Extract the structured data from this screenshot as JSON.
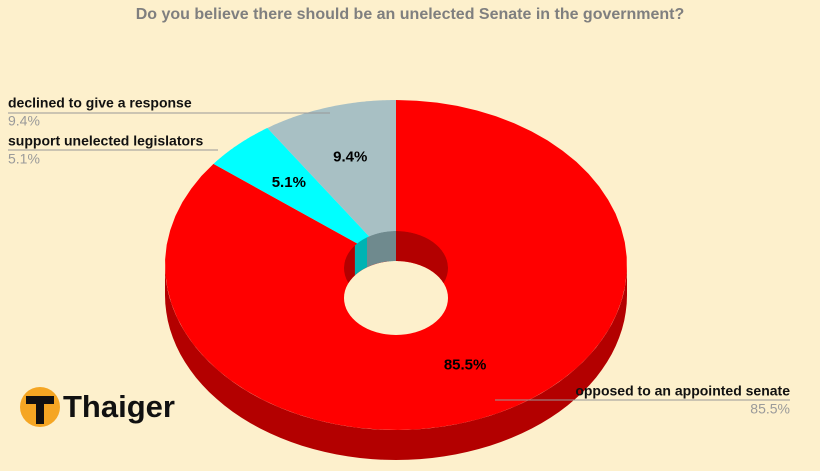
{
  "chart_data": {
    "type": "donut",
    "title": "Do you believe there should be an unelected Senate in the government?",
    "categories": [
      "opposed to an appointed senate",
      "support unelected legislators",
      "declined to give a response"
    ],
    "values": [
      85.5,
      5.1,
      9.4
    ],
    "value_labels": [
      "85.5%",
      "5.1%",
      "9.4%"
    ],
    "colors": [
      "#ff0000",
      "#00ffff",
      "#a8c0c4"
    ],
    "side_colors": [
      "#b30000",
      "#00b3b3",
      "#6f8a8e"
    ]
  },
  "logo": "Thaiger"
}
